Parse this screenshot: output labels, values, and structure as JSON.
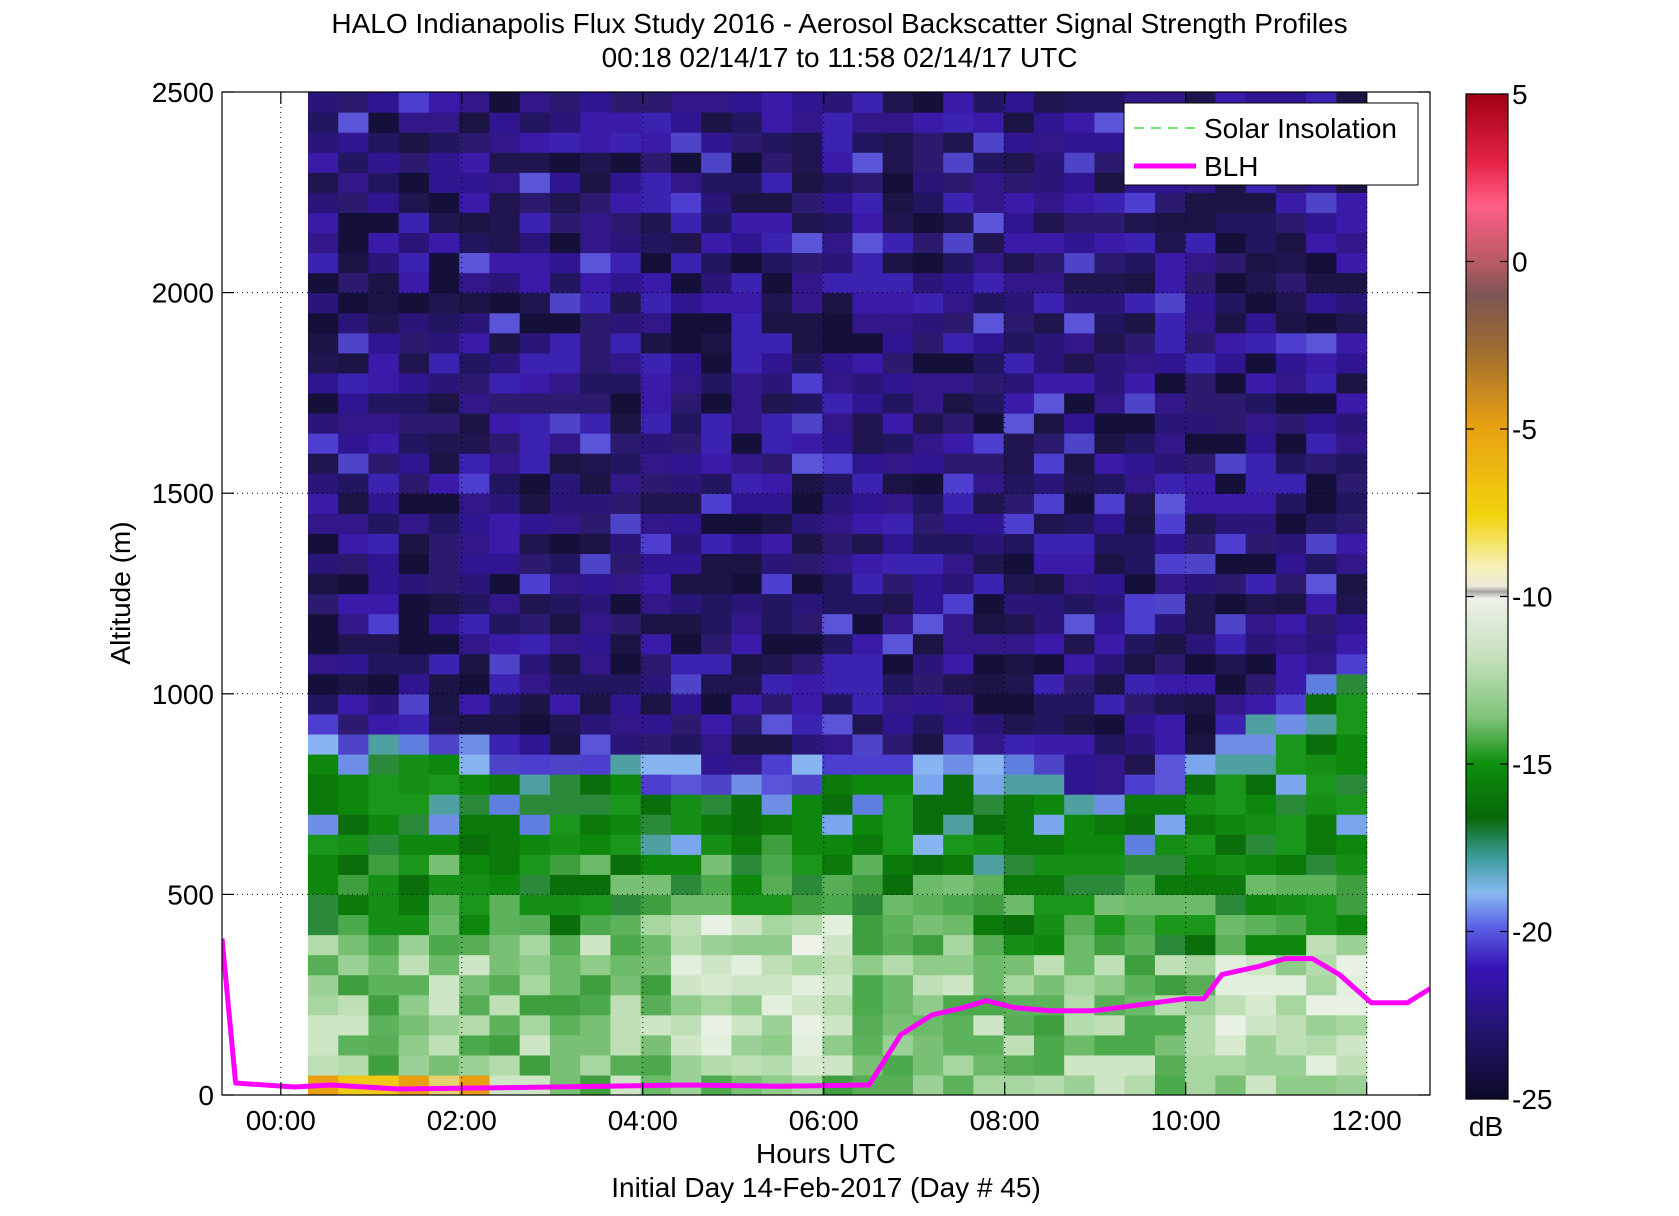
{
  "chart_data": {
    "type": "heatmap",
    "title": "HALO Indianapolis Flux Study 2016 - Aerosol Backscatter Signal Strength Profiles",
    "subtitle": "00:18 02/14/17 to 11:58 02/14/17  UTC",
    "xlabel": "Hours UTC",
    "xlabel2": "Initial Day 14-Feb-2017 (Day # 45)",
    "ylabel": "Altitude (m)",
    "xlim": [
      -0.65,
      12.7
    ],
    "ylim": [
      0,
      2500
    ],
    "x_ticks": [
      {
        "value": 0,
        "label": "00:00"
      },
      {
        "value": 2,
        "label": "02:00"
      },
      {
        "value": 4,
        "label": "04:00"
      },
      {
        "value": 6,
        "label": "06:00"
      },
      {
        "value": 8,
        "label": "08:00"
      },
      {
        "value": 10,
        "label": "10:00"
      },
      {
        "value": 12,
        "label": "12:00"
      }
    ],
    "y_ticks": [
      {
        "value": 0,
        "label": "0"
      },
      {
        "value": 500,
        "label": "500"
      },
      {
        "value": 1000,
        "label": "1000"
      },
      {
        "value": 1500,
        "label": "1500"
      },
      {
        "value": 2000,
        "label": "2000"
      },
      {
        "value": 2500,
        "label": "2500"
      }
    ],
    "grid": "dotted",
    "colorbar": {
      "label": "dB",
      "range": [
        -25,
        5
      ],
      "ticks": [
        {
          "value": 5,
          "label": "5"
        },
        {
          "value": 0,
          "label": "0"
        },
        {
          "value": -5,
          "label": "-5"
        },
        {
          "value": -10,
          "label": "-10"
        },
        {
          "value": -15,
          "label": "-15"
        },
        {
          "value": -20,
          "label": "-20"
        },
        {
          "value": -25,
          "label": "-25"
        }
      ]
    },
    "legend": {
      "placement": "top-right",
      "entries": [
        {
          "name": "Solar Insolation",
          "color": "#44dd44",
          "style": "dashed"
        },
        {
          "name": "BLH",
          "color": "#ff00ff",
          "style": "solid"
        }
      ]
    },
    "heatmap": {
      "time_range": [
        0.3,
        12.0
      ],
      "altitude_range": [
        0,
        2500
      ],
      "n_time_bins": 35,
      "bin_height_m": 50,
      "layer_boundaries_m": [
        {
          "time": 0.3,
          "mixed_top": 575,
          "aerosol_top": 875
        },
        {
          "time": 2.0,
          "mixed_top": 600,
          "aerosol_top": 825
        },
        {
          "time": 4.0,
          "mixed_top": 600,
          "aerosol_top": 775
        },
        {
          "time": 5.2,
          "mixed_top": 650,
          "aerosol_top": 750
        },
        {
          "time": 6.0,
          "mixed_top": 625,
          "aerosol_top": 780
        },
        {
          "time": 8.0,
          "mixed_top": 560,
          "aerosol_top": 780
        },
        {
          "time": 9.0,
          "mixed_top": 520,
          "aerosol_top": 700
        },
        {
          "time": 10.5,
          "mixed_top": 540,
          "aerosol_top": 820
        },
        {
          "time": 11.5,
          "mixed_top": 560,
          "aerosol_top": 980
        },
        {
          "time": 12.0,
          "mixed_top": 575,
          "aerosol_top": 1100
        }
      ]
    },
    "series": [
      {
        "name": "BLH",
        "color": "#ff00ff",
        "points": [
          [
            -0.65,
            390
          ],
          [
            -0.5,
            30
          ],
          [
            0.15,
            20
          ],
          [
            0.55,
            25
          ],
          [
            1.3,
            15
          ],
          [
            3.0,
            20
          ],
          [
            4.5,
            25
          ],
          [
            5.5,
            22
          ],
          [
            6.5,
            25
          ],
          [
            6.85,
            150
          ],
          [
            7.2,
            200
          ],
          [
            7.5,
            215
          ],
          [
            7.8,
            235
          ],
          [
            8.1,
            218
          ],
          [
            8.5,
            210
          ],
          [
            9.0,
            210
          ],
          [
            9.5,
            225
          ],
          [
            10.0,
            240
          ],
          [
            10.2,
            240
          ],
          [
            10.4,
            300
          ],
          [
            10.8,
            320
          ],
          [
            11.1,
            340
          ],
          [
            11.4,
            340
          ],
          [
            11.7,
            300
          ],
          [
            12.05,
            230
          ],
          [
            12.45,
            230
          ],
          [
            12.7,
            265
          ]
        ]
      }
    ]
  }
}
